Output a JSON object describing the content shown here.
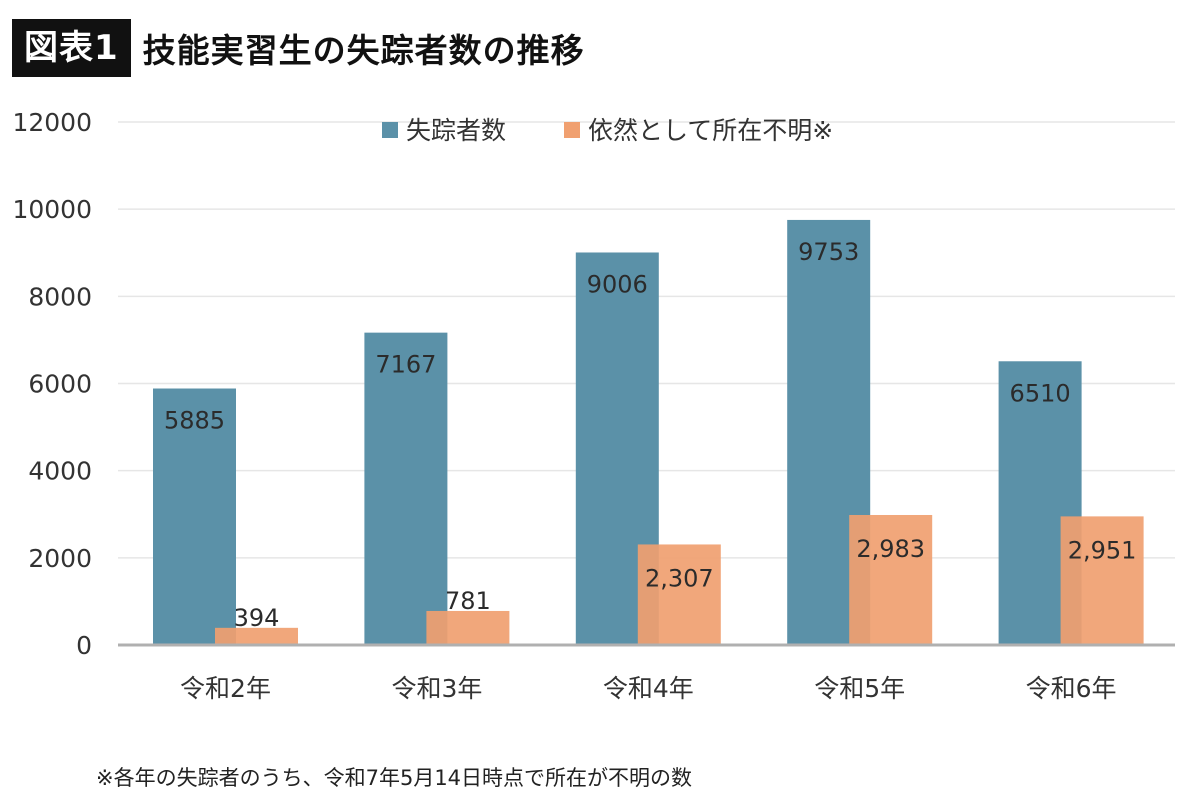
{
  "header": {
    "badge": "図表1",
    "title": "技能実習生の失踪者数の推移"
  },
  "note": "※各年の失踪者のうち、令和7年5月14日時点で所在が不明の数",
  "colors": {
    "series1": "#5b91a8",
    "series2": "#f0a070",
    "grid": "#e6e6e6",
    "axis": "#b0b0b0",
    "text": "#333333"
  },
  "chart_data": {
    "type": "bar",
    "categories": [
      "令和2年",
      "令和3年",
      "令和4年",
      "令和5年",
      "令和6年"
    ],
    "ylim": [
      0,
      12000
    ],
    "yticks": [
      "0",
      "2000",
      "4000",
      "6000",
      "8000",
      "10000",
      "12000"
    ],
    "legend_position": "top",
    "grid": true,
    "series": [
      {
        "name": "失踪者数",
        "values": [
          5885,
          7167,
          9006,
          9753,
          6510
        ],
        "labels": [
          "5885",
          "7167",
          "9006",
          "9753",
          "6510"
        ]
      },
      {
        "name": "依然として所在不明※",
        "values": [
          394,
          781,
          2307,
          2983,
          2951
        ],
        "labels": [
          "394",
          "781",
          "2,307",
          "2,983",
          "2,951"
        ]
      }
    ]
  }
}
